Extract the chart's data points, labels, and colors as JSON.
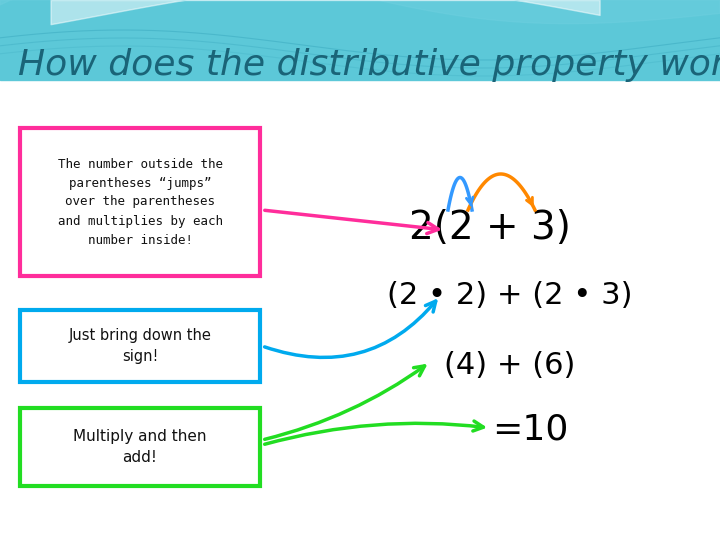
{
  "title": "How does the distributive property work?",
  "title_color": "#1A6478",
  "title_fontsize": 26,
  "box1_text": "The number outside the\nparentheses “jumps”\nover the parentheses\nand multiplies by each\nnumber inside!",
  "box1_color": "#FF2D9B",
  "box2_text": "Just bring down the\nsign!",
  "box2_color": "#00AAEE",
  "box3_text": "Multiply and then\nadd!",
  "box3_color": "#22DD22",
  "expr1": "2(2 + 3)",
  "expr2": "(2 • 2) + (2 • 3)",
  "expr3": "(4) + (6)",
  "expr4": "=10",
  "arrow1_color": "#FF2D9B",
  "arrow2_color": "#00AAEE",
  "arrow3a_color": "#22DD22",
  "arrow3b_color": "#22DD22",
  "arch1_color": "#3399FF",
  "arch2_color": "#FF8800",
  "wave_color1": "#55C5D5",
  "wave_color2": "#77D5E5",
  "wave_color3": "#AADFE8"
}
